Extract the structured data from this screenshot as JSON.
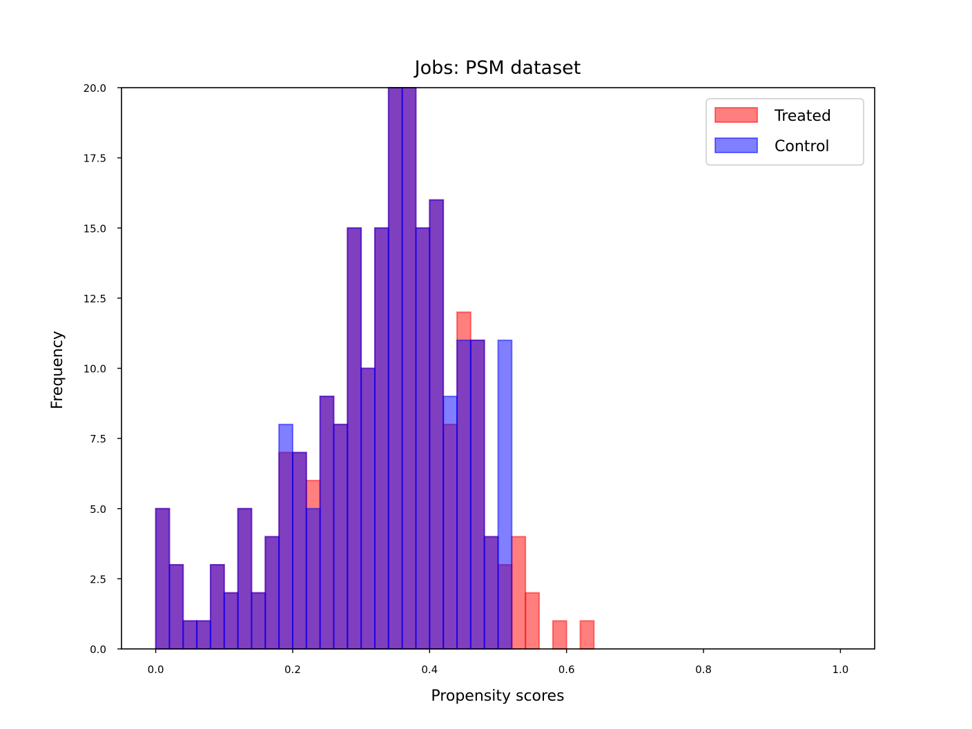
{
  "chart_data": {
    "type": "bar",
    "title": "Jobs: PSM dataset",
    "xlabel": "Propensity scores",
    "ylabel": "Frequency",
    "xlim": [
      -0.05,
      1.05
    ],
    "ylim": [
      0,
      20
    ],
    "xticks": [
      0.0,
      0.2,
      0.4,
      0.6,
      0.8,
      1.0
    ],
    "xtick_labels": [
      "0.0",
      "0.2",
      "0.4",
      "0.6",
      "0.8",
      "1.0"
    ],
    "yticks": [
      0.0,
      2.5,
      5.0,
      7.5,
      10.0,
      12.5,
      15.0,
      17.5,
      20.0
    ],
    "ytick_labels": [
      "0.0",
      "2.5",
      "5.0",
      "7.5",
      "10.0",
      "12.5",
      "15.0",
      "17.5",
      "20.0"
    ],
    "bin_width": 0.02,
    "bin_starts": [
      0.0,
      0.02,
      0.04,
      0.06,
      0.08,
      0.1,
      0.12,
      0.14,
      0.16,
      0.18,
      0.2,
      0.22,
      0.24,
      0.26,
      0.28,
      0.3,
      0.32,
      0.34,
      0.36,
      0.38,
      0.4,
      0.42,
      0.44,
      0.46,
      0.48,
      0.5,
      0.52,
      0.54,
      0.56,
      0.58,
      0.6,
      0.62
    ],
    "grid": false,
    "legend_position": "top-right",
    "series": [
      {
        "name": "Treated",
        "color": "#ff0000",
        "values": [
          5,
          3,
          1,
          1,
          3,
          2,
          5,
          2,
          4,
          7,
          7,
          6,
          9,
          8,
          15,
          10,
          15,
          20,
          20,
          15,
          16,
          8,
          12,
          11,
          4,
          3,
          4,
          2,
          0,
          1,
          0,
          1
        ]
      },
      {
        "name": "Control",
        "color": "#0000ff",
        "values": [
          5,
          3,
          1,
          1,
          3,
          2,
          5,
          2,
          4,
          8,
          7,
          5,
          9,
          8,
          15,
          10,
          15,
          20,
          20,
          15,
          16,
          9,
          11,
          11,
          4,
          11,
          0,
          0,
          0,
          0,
          0,
          0
        ]
      }
    ]
  }
}
